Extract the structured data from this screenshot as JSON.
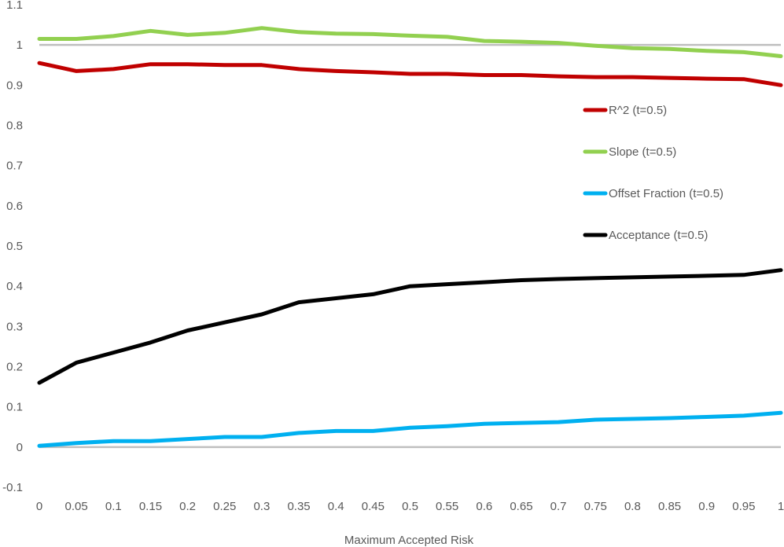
{
  "chart_data": {
    "type": "line",
    "title": "",
    "xlabel": "Maximum Accepted Risk",
    "ylabel": "",
    "xlim": [
      0,
      1
    ],
    "ylim": [
      -0.1,
      1.1
    ],
    "x_ticks": [
      "0",
      "0.05",
      "0.1",
      "0.15",
      "0.2",
      "0.25",
      "0.3",
      "0.35",
      "0.4",
      "0.45",
      "0.5",
      "0.55",
      "0.6",
      "0.65",
      "0.7",
      "0.75",
      "0.8",
      "0.85",
      "0.9",
      "0.95",
      "1"
    ],
    "y_ticks": [
      "1.1",
      "1",
      "0.9",
      "0.8",
      "0.7",
      "0.6",
      "0.5",
      "0.4",
      "0.3",
      "0.2",
      "0.1",
      "0",
      "-0.1"
    ],
    "grid": false,
    "reference_lines": [
      1,
      0
    ],
    "legend_placement": "center-right",
    "x": [
      0,
      0.05,
      0.1,
      0.15,
      0.2,
      0.25,
      0.3,
      0.35,
      0.4,
      0.45,
      0.5,
      0.55,
      0.6,
      0.65,
      0.7,
      0.75,
      0.8,
      0.85,
      0.9,
      0.95,
      1
    ],
    "series": [
      {
        "name": "R^2 (t=0.5)",
        "color": "#c00000",
        "values": [
          0.955,
          0.935,
          0.94,
          0.952,
          0.952,
          0.95,
          0.95,
          0.94,
          0.935,
          0.932,
          0.928,
          0.928,
          0.925,
          0.925,
          0.922,
          0.92,
          0.92,
          0.918,
          0.916,
          0.915,
          0.9
        ]
      },
      {
        "name": "Slope (t=0.5)",
        "color": "#92d050",
        "values": [
          1.015,
          1.015,
          1.022,
          1.035,
          1.025,
          1.03,
          1.042,
          1.032,
          1.028,
          1.027,
          1.023,
          1.02,
          1.01,
          1.008,
          1.005,
          0.998,
          0.992,
          0.99,
          0.985,
          0.982,
          0.972
        ]
      },
      {
        "name": "Offset Fraction (t=0.5)",
        "color": "#00b0f0",
        "values": [
          0.003,
          0.01,
          0.015,
          0.015,
          0.02,
          0.025,
          0.025,
          0.035,
          0.04,
          0.04,
          0.048,
          0.052,
          0.058,
          0.06,
          0.062,
          0.068,
          0.07,
          0.072,
          0.075,
          0.078,
          0.085
        ]
      },
      {
        "name": "Acceptance (t=0.5)",
        "color": "#000000",
        "values": [
          0.16,
          0.21,
          0.235,
          0.26,
          0.29,
          0.31,
          0.33,
          0.36,
          0.37,
          0.38,
          0.4,
          0.405,
          0.41,
          0.415,
          0.418,
          0.42,
          0.422,
          0.424,
          0.426,
          0.428,
          0.44
        ]
      }
    ]
  }
}
